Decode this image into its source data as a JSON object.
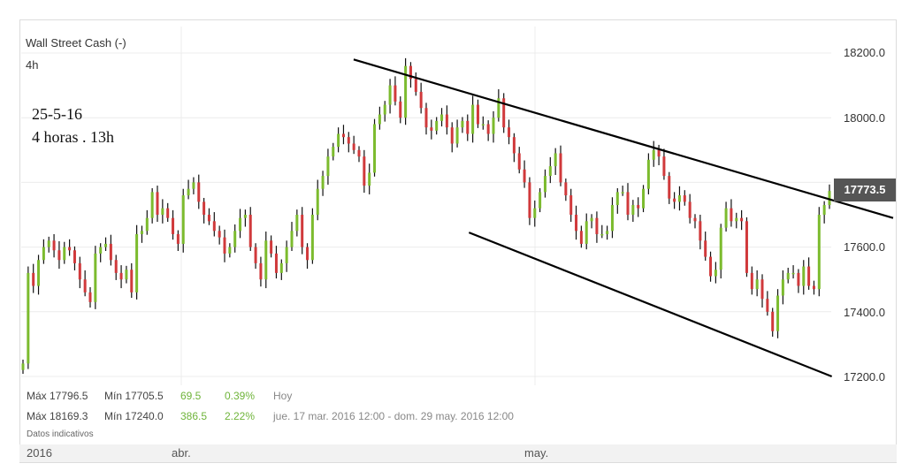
{
  "header": {
    "title": "Wall Street Cash (-)",
    "timeframe": "4h"
  },
  "annotation": {
    "line1": "25-5-16",
    "line2": "4 horas  .  13h"
  },
  "stats": {
    "today": {
      "max": "Máx 17796.5",
      "min": "Mín 17705.5",
      "change": "69.5",
      "pct": "0.39%",
      "period": "Hoy"
    },
    "range": {
      "max": "Máx 18169.3",
      "min": "Mín 17240.0",
      "change": "386.5",
      "pct": "2.22%",
      "period": "jue. 17 mar. 2016 12:00 - dom. 29 may. 2016 12:00"
    }
  },
  "disclaimer": "Datos indicativos",
  "last_price": "17773.5",
  "colors": {
    "up": "#7cbb2e",
    "down": "#d0393b",
    "wick": "#111111",
    "trendline": "#000000",
    "grid": "#ececec",
    "badge": "#555555"
  },
  "chart_data": {
    "type": "line",
    "title": "Wall Street Cash (-)",
    "timeframe": "4h",
    "ylim": [
      17160,
      18260
    ],
    "yticks": [
      "18200.0",
      "18000.0",
      "17600.0",
      "17400.0",
      "17200.0"
    ],
    "ytick_values": [
      18200,
      18000,
      17600,
      17400,
      17200
    ],
    "xticks": [
      "2016",
      "abr.",
      "may."
    ],
    "grid": true,
    "last_price": 17773.5,
    "series": [
      {
        "values": [
          17240,
          17520,
          17480,
          17560,
          17600,
          17620,
          17590,
          17560,
          17600,
          17590,
          17550,
          17500,
          17460,
          17430,
          17580,
          17600,
          17610,
          17560,
          17520,
          17500,
          17530,
          17460,
          17640,
          17650,
          17690,
          17770,
          17700,
          17720,
          17690,
          17640,
          17610,
          17760,
          17780,
          17800,
          17740,
          17700,
          17680,
          17650,
          17630,
          17580,
          17600,
          17650,
          17690,
          17700,
          17600,
          17550,
          17500,
          17620,
          17580,
          17520,
          17550,
          17600,
          17650,
          17700,
          17600,
          17560,
          17700,
          17780,
          17820,
          17880,
          17910,
          17950,
          17940,
          17920,
          17900,
          17880,
          17790,
          17830,
          17980,
          18010,
          18040,
          18100,
          18050,
          18000,
          18160,
          18120,
          18080,
          18030,
          17970,
          17960,
          17990,
          18010,
          17970,
          17920,
          17970,
          17990,
          17950,
          18040,
          17980,
          17980,
          17950,
          18000,
          18060,
          17970,
          17940,
          17890,
          17840,
          17800,
          17690,
          17720,
          17770,
          17820,
          17850,
          17890,
          17800,
          17760,
          17700,
          17650,
          17610,
          17680,
          17690,
          17640,
          17640,
          17650,
          17730,
          17770,
          17770,
          17700,
          17730,
          17720,
          17780,
          17870,
          17900,
          17880,
          17820,
          17750,
          17740,
          17760,
          17740,
          17690,
          17680,
          17620,
          17570,
          17510,
          17530,
          17660,
          17720,
          17680,
          17690,
          17680,
          17520,
          17470,
          17500,
          17440,
          17400,
          17340,
          17450,
          17500,
          17520,
          17520,
          17480,
          17540,
          17480,
          17470,
          17700,
          17730,
          17773.5
        ]
      }
    ],
    "trendlines": [
      {
        "name": "upper",
        "from": [
          0.41,
          18180
        ],
        "to": [
          1.0,
          17690
        ]
      },
      {
        "name": "lower",
        "from": [
          0.553,
          17645
        ],
        "to": [
          0.97,
          17200
        ]
      }
    ],
    "trendlines_note": ""
  }
}
